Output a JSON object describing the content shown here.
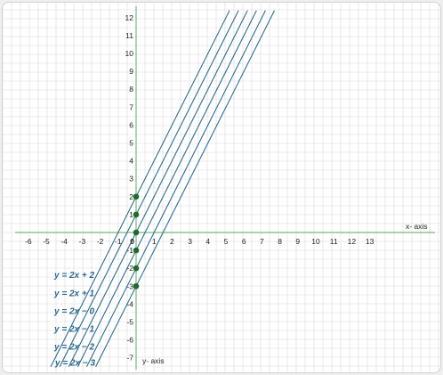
{
  "chart_data": {
    "type": "line",
    "title": "",
    "xlabel": "x- axis",
    "ylabel": "y- axis",
    "xlim": [
      -7,
      15.5
    ],
    "ylim": [
      -7.5,
      12.4
    ],
    "grid": true,
    "x_ticks": [
      "-6",
      "-5",
      "-4",
      "-3",
      "-2",
      "-1",
      "0",
      "1",
      "2",
      "3",
      "4",
      "5",
      "6",
      "7",
      "8",
      "9",
      "10",
      "11",
      "12",
      "13"
    ],
    "y_ticks": [
      "12",
      "11",
      "10",
      "9",
      "8",
      "7",
      "6",
      "5",
      "4",
      "3",
      "2",
      "1",
      "-1",
      "-2",
      "-3",
      "-4",
      "-5",
      "-6",
      "-7"
    ],
    "origin_label": "0",
    "series": [
      {
        "name": "y = 2x + 2",
        "slope": 2,
        "intercept": 2,
        "x": [
          -4.75,
          5.2
        ],
        "y": [
          -7.5,
          12.4
        ]
      },
      {
        "name": "y = 2x + 1",
        "slope": 2,
        "intercept": 1,
        "x": [
          -4.25,
          5.7
        ],
        "y": [
          -7.5,
          12.4
        ]
      },
      {
        "name": "y = 2x − 0",
        "slope": 2,
        "intercept": 0,
        "x": [
          -3.75,
          6.2
        ],
        "y": [
          -7.5,
          12.4
        ]
      },
      {
        "name": "y = 2x − 1",
        "slope": 2,
        "intercept": -1,
        "x": [
          -3.25,
          6.7
        ],
        "y": [
          -7.5,
          12.4
        ]
      },
      {
        "name": "y = 2x − 2",
        "slope": 2,
        "intercept": -2,
        "x": [
          -2.75,
          7.2
        ],
        "y": [
          -7.5,
          12.4
        ]
      },
      {
        "name": "y = 2x − 3",
        "slope": 2,
        "intercept": -3,
        "x": [
          -2.25,
          7.7
        ],
        "y": [
          -7.5,
          12.4
        ]
      }
    ],
    "points": [
      {
        "x": 0,
        "y": 2
      },
      {
        "x": 0,
        "y": 1
      },
      {
        "x": 0,
        "y": 0
      },
      {
        "x": 0,
        "y": -1
      },
      {
        "x": 0,
        "y": -2
      },
      {
        "x": 0,
        "y": -3
      }
    ],
    "colors": {
      "line": "#2c6f8e",
      "label": "#2b6a8f",
      "point": "#1e6b2c",
      "axis": "#7bb87b",
      "grid": "#d9d9d9",
      "origin": "#c0392b"
    }
  }
}
